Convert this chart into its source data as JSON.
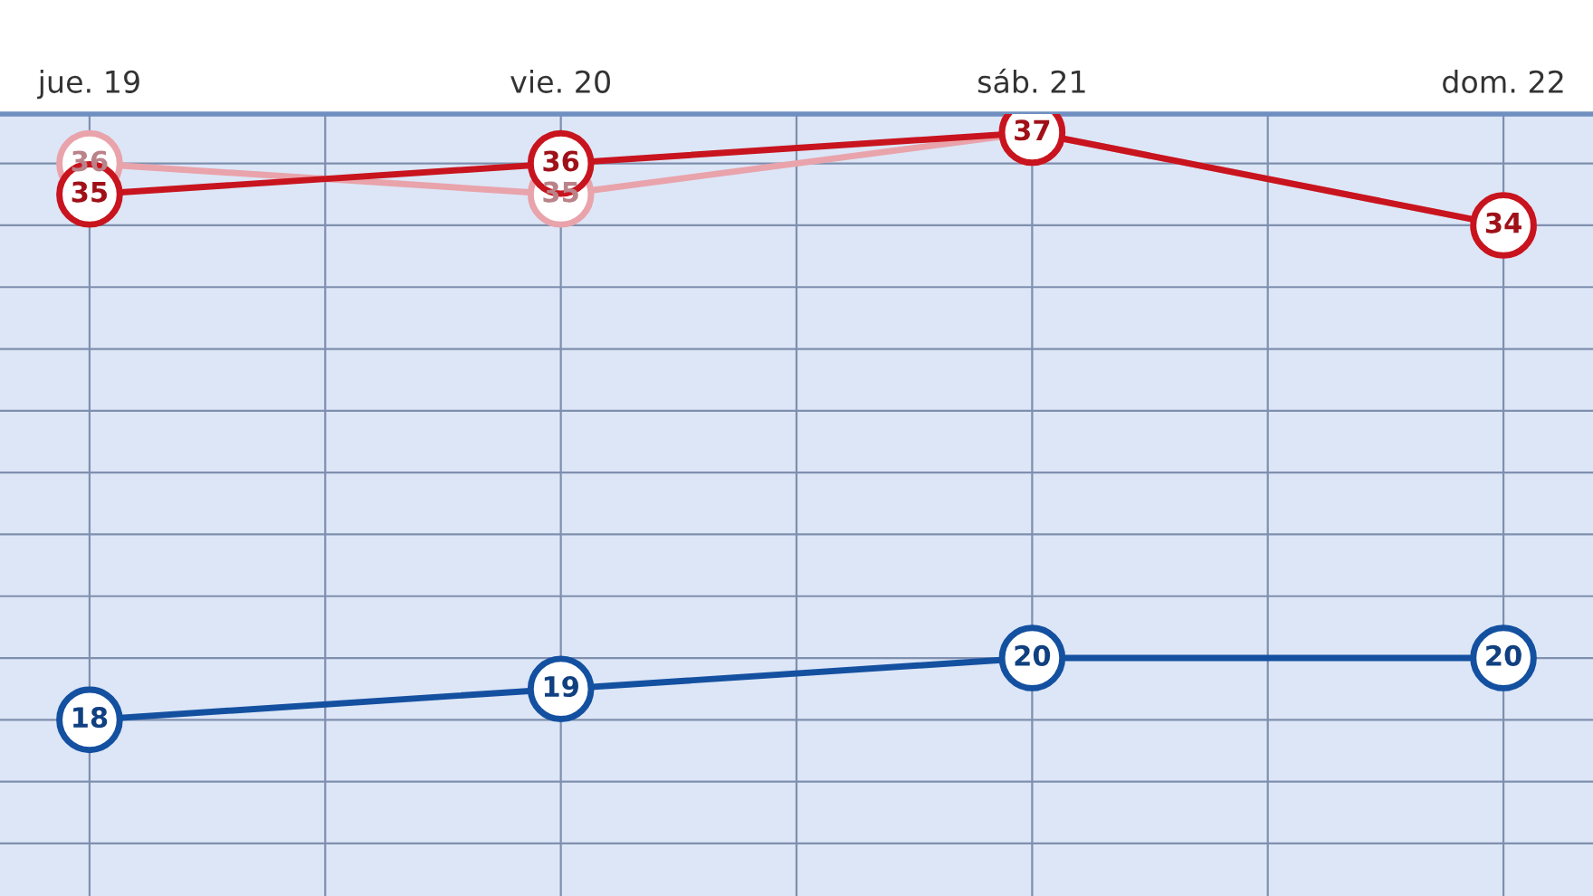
{
  "chart_data": {
    "type": "line",
    "categories": [
      "jue. 19",
      "vie. 20",
      "sáb. 21",
      "dom. 22"
    ],
    "series": [
      {
        "color": "#e9a3ab",
        "values": [
          36,
          35,
          37,
          34
        ],
        "value_labels": [
          "36",
          "35",
          null,
          null
        ]
      },
      {
        "color": "#c8141e",
        "values": [
          35,
          36,
          37,
          34
        ]
      },
      {
        "color": "#1450a0",
        "values": [
          18,
          19,
          20,
          20
        ]
      }
    ],
    "ylim": [
      12.3,
      37.6
    ],
    "yticks": [
      {
        "value": 14,
        "label": null
      },
      {
        "value": 16,
        "label": null
      },
      {
        "value": 18,
        "label": null
      },
      {
        "value": 20,
        "label": null
      },
      {
        "value": 22,
        "label": null
      },
      {
        "value": 24,
        "label": null
      },
      {
        "value": 26,
        "label": null
      },
      {
        "value": 28,
        "label": null
      },
      {
        "value": 30,
        "label": null
      },
      {
        "value": 32,
        "label": null
      },
      {
        "value": 34,
        "label": null
      },
      {
        "value": 36,
        "label": null
      }
    ],
    "tick_labels": "x",
    "grid": true,
    "marker": "circle",
    "line_style": "solid",
    "data_labels": true
  }
}
